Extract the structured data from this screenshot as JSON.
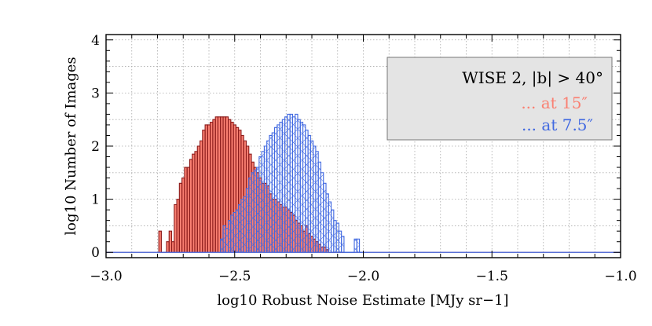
{
  "chart_data": {
    "type": "histogram",
    "xlabel": "log10 Robust Noise Estimate [MJy sr−1]",
    "ylabel": "log10 Number of Images",
    "xlim": [
      -3.0,
      -1.0
    ],
    "ylim": [
      -0.1,
      4.1
    ],
    "x_ticks": [
      "−3.0",
      "−2.5",
      "−2.0",
      "−1.5",
      "−1.0"
    ],
    "y_ticks": [
      "0",
      "1",
      "2",
      "3",
      "4"
    ],
    "grid": true,
    "legend": {
      "placement": "top-right",
      "title": "WISE 2, |b| > 40°",
      "line_15": "... at 15″",
      "line_7p5": "... at 7.5″"
    },
    "series": [
      {
        "name": "... at 15″",
        "color": "#fa8072",
        "style": "filled",
        "x": [
          -2.79,
          -2.78,
          -2.77,
          -2.76,
          -2.75,
          -2.74,
          -2.73,
          -2.72,
          -2.71,
          -2.7,
          -2.69,
          -2.68,
          -2.67,
          -2.66,
          -2.65,
          -2.64,
          -2.63,
          -2.62,
          -2.61,
          -2.6,
          -2.59,
          -2.58,
          -2.57,
          -2.56,
          -2.55,
          -2.54,
          -2.53,
          -2.52,
          -2.51,
          -2.5,
          -2.49,
          -2.48,
          -2.47,
          -2.46,
          -2.45,
          -2.44,
          -2.43,
          -2.42,
          -2.41,
          -2.4,
          -2.39,
          -2.38,
          -2.37,
          -2.36,
          -2.35,
          -2.34,
          -2.33,
          -2.32,
          -2.31,
          -2.3,
          -2.29,
          -2.28,
          -2.27,
          -2.26,
          -2.25,
          -2.24,
          -2.23,
          -2.22,
          -2.21,
          -2.2,
          -2.19,
          -2.18,
          -2.17,
          -2.16,
          -2.15,
          -2.14,
          -2.13,
          -2.12,
          -2.11,
          -2.1,
          -2.09,
          -2.08
        ],
        "values": [
          0.4,
          0.0,
          0.0,
          0.2,
          0.4,
          0.2,
          0.9,
          1.0,
          1.3,
          1.4,
          1.6,
          1.6,
          1.75,
          1.85,
          1.9,
          2.0,
          2.1,
          2.3,
          2.4,
          2.4,
          2.45,
          2.5,
          2.55,
          2.55,
          2.55,
          2.55,
          2.55,
          2.5,
          2.45,
          2.4,
          2.35,
          2.3,
          2.2,
          2.1,
          2.0,
          1.85,
          1.7,
          1.6,
          1.5,
          1.4,
          1.3,
          1.3,
          1.25,
          1.1,
          1.0,
          1.0,
          0.95,
          0.9,
          0.85,
          0.85,
          0.8,
          0.75,
          0.7,
          0.6,
          0.55,
          0.5,
          0.4,
          0.5,
          0.35,
          0.3,
          0.25,
          0.2,
          0.15,
          0.1,
          0.1,
          0.05,
          0.0,
          0.0,
          0.0,
          0.0,
          0.0,
          0.0
        ]
      },
      {
        "name": "... at 7.5″",
        "color": "#4169e1",
        "style": "hatched",
        "x": [
          -2.55,
          -2.54,
          -2.53,
          -2.52,
          -2.51,
          -2.5,
          -2.49,
          -2.48,
          -2.47,
          -2.46,
          -2.45,
          -2.44,
          -2.43,
          -2.42,
          -2.41,
          -2.4,
          -2.39,
          -2.38,
          -2.37,
          -2.36,
          -2.35,
          -2.34,
          -2.33,
          -2.32,
          -2.31,
          -2.3,
          -2.29,
          -2.28,
          -2.27,
          -2.26,
          -2.25,
          -2.24,
          -2.23,
          -2.22,
          -2.21,
          -2.2,
          -2.19,
          -2.18,
          -2.17,
          -2.16,
          -2.15,
          -2.14,
          -2.13,
          -2.12,
          -2.11,
          -2.1,
          -2.09,
          -2.08,
          -2.07,
          -2.06,
          -2.05,
          -2.04,
          -2.03,
          -2.02,
          -2.01
        ],
        "values": [
          0.25,
          0.5,
          0.45,
          0.6,
          0.7,
          0.75,
          0.8,
          0.9,
          1.0,
          1.05,
          1.2,
          1.4,
          1.5,
          1.55,
          1.6,
          1.8,
          1.9,
          2.0,
          2.1,
          2.2,
          2.25,
          2.35,
          2.4,
          2.45,
          2.5,
          2.55,
          2.6,
          2.6,
          2.55,
          2.6,
          2.5,
          2.45,
          2.4,
          2.3,
          2.2,
          2.1,
          2.0,
          1.9,
          1.7,
          1.5,
          1.3,
          1.1,
          0.95,
          0.8,
          0.6,
          0.55,
          0.4,
          0.3,
          0.0,
          0.0,
          0.0,
          0.0,
          0.25,
          0.25,
          0.0
        ]
      }
    ]
  }
}
